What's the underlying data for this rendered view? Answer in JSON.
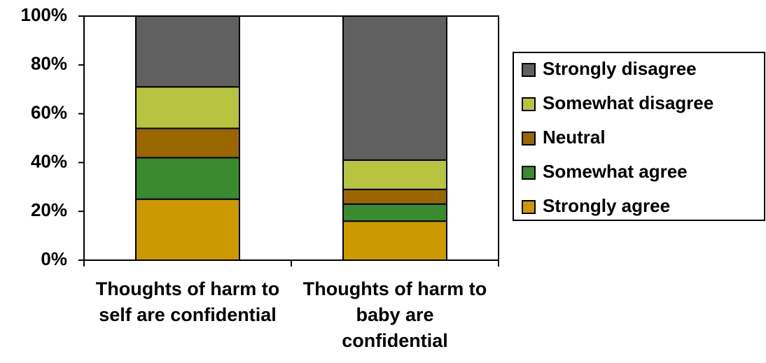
{
  "chart_data": {
    "type": "stacked_bar",
    "categories": [
      "Thoughts of harm to self are confidential",
      "Thoughts of harm to baby are confidential"
    ],
    "series": [
      {
        "name": "Strongly agree",
        "color": "#cc9900",
        "values": [
          25,
          16
        ]
      },
      {
        "name": "Somewhat agree",
        "color": "#3a8a30",
        "values": [
          17,
          7
        ]
      },
      {
        "name": "Neutral",
        "color": "#996600",
        "values": [
          12,
          6
        ]
      },
      {
        "name": "Somewhat disagree",
        "color": "#b8c440",
        "values": [
          17,
          12
        ]
      },
      {
        "name": "Strongly disagree",
        "color": "#606060",
        "values": [
          29,
          59
        ]
      }
    ],
    "ylim": [
      0,
      100
    ],
    "yticks": [
      {
        "value": 0,
        "label": "0%"
      },
      {
        "value": 20,
        "label": "20%"
      },
      {
        "value": 40,
        "label": "40%"
      },
      {
        "value": 60,
        "label": "60%"
      },
      {
        "value": 80,
        "label": "80%"
      },
      {
        "value": 100,
        "label": "100%"
      }
    ],
    "legend": "right"
  }
}
